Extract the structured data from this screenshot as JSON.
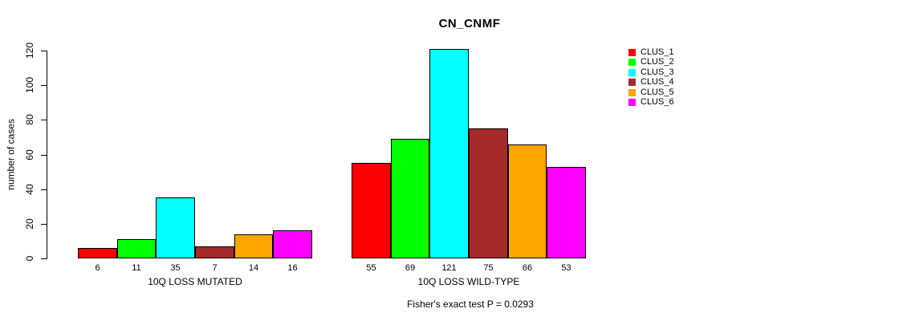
{
  "chart_data": {
    "type": "bar",
    "title": "CN_CNMF",
    "ylabel": "number of cases",
    "xlabel": "",
    "annotation": "Fisher's exact test P = 0.0293",
    "ylim": [
      0,
      120
    ],
    "yticks": [
      0,
      20,
      40,
      60,
      80,
      100,
      120
    ],
    "grid": false,
    "legend_position": "right",
    "bar_value_labels": true,
    "categories": [
      "10Q LOSS MUTATED",
      "10Q LOSS WILD-TYPE"
    ],
    "series": [
      {
        "name": "CLUS_1",
        "color": "#ff0000",
        "values": [
          6,
          55
        ]
      },
      {
        "name": "CLUS_2",
        "color": "#00ff00",
        "values": [
          11,
          69
        ]
      },
      {
        "name": "CLUS_3",
        "color": "#00ffff",
        "values": [
          35,
          121
        ]
      },
      {
        "name": "CLUS_4",
        "color": "#a52a2a",
        "values": [
          7,
          75
        ]
      },
      {
        "name": "CLUS_5",
        "color": "#ffa500",
        "values": [
          14,
          66
        ]
      },
      {
        "name": "CLUS_6",
        "color": "#ff00ff",
        "values": [
          16,
          53
        ]
      }
    ]
  }
}
